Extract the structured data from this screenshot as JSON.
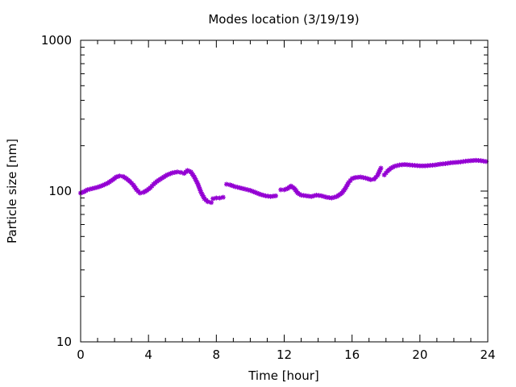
{
  "chart_data": {
    "type": "scatter",
    "title": "Modes location (3/19/19)",
    "xlabel": "Time [hour]",
    "ylabel": "Particle size [nm]",
    "xlim": [
      0,
      24
    ],
    "ylim": [
      10,
      1000
    ],
    "y_scale": "log",
    "x_ticks": [
      0,
      4,
      8,
      12,
      16,
      20,
      24
    ],
    "x_tick_labels": [
      "0",
      "4",
      "8",
      "12",
      "16",
      "20",
      "24"
    ],
    "y_ticks": [
      10,
      100,
      1000
    ],
    "y_tick_labels": [
      "10",
      "100",
      "1000"
    ],
    "grid": false,
    "marker_color": "#9400d3",
    "series": [
      {
        "segments": [
          {
            "x": [
              0.0,
              0.2,
              0.4,
              0.7,
              1.0,
              1.3,
              1.6,
              1.9,
              2.1,
              2.3,
              2.5,
              2.7,
              2.9,
              3.1,
              3.3,
              3.5,
              3.7,
              3.9,
              4.1,
              4.3,
              4.5,
              4.8,
              5.1,
              5.4,
              5.7,
              5.9,
              6.1,
              6.3,
              6.5,
              6.7,
              6.9,
              7.1,
              7.3,
              7.5,
              7.7
            ],
            "y": [
              97,
              99,
              102,
              104,
              106,
              109,
              113,
              119,
              124,
              126,
              125,
              121,
              116,
              110,
              102,
              97,
              98,
              101,
              105,
              111,
              116,
              122,
              128,
              132,
              134,
              133,
              131,
              137,
              134,
              124,
              112,
              98,
              89,
              85,
              84
            ]
          },
          {
            "x": [
              7.8,
              8.0,
              8.2,
              8.4
            ],
            "y": [
              89,
              90,
              90,
              91
            ]
          },
          {
            "x": [
              8.6,
              8.8,
              9.1,
              9.4,
              9.7,
              10.0,
              10.3,
              10.6,
              10.9,
              11.2,
              11.5
            ],
            "y": [
              111,
              110,
              107,
              105,
              103,
              101,
              98,
              95,
              93,
              92,
              93
            ]
          },
          {
            "x": [
              11.8,
              12.0,
              12.2,
              12.4,
              12.6,
              12.8,
              13.0,
              13.3,
              13.6,
              13.9,
              14.2,
              14.5,
              14.8,
              15.1,
              15.4,
              15.6,
              15.8,
              16.0,
              16.2,
              16.5,
              16.8,
              17.1,
              17.3,
              17.5,
              17.7
            ],
            "y": [
              102,
              102,
              104,
              108,
              104,
              97,
              94,
              93,
              92,
              94,
              93,
              91,
              90,
              92,
              97,
              104,
              114,
              121,
              123,
              124,
              122,
              119,
              120,
              127,
              142
            ]
          },
          {
            "x": [
              17.9,
              18.1,
              18.3,
              18.5,
              18.8,
              19.1,
              19.4,
              19.7,
              20.0,
              20.3,
              20.6,
              20.9,
              21.2,
              21.5,
              21.8,
              22.1,
              22.4,
              22.7,
              23.0,
              23.3,
              23.6,
              23.9
            ],
            "y": [
              128,
              136,
              142,
              146,
              149,
              150,
              149,
              148,
              147,
              147,
              148,
              149,
              151,
              152,
              154,
              155,
              156,
              158,
              159,
              160,
              159,
              157
            ]
          }
        ]
      }
    ]
  }
}
